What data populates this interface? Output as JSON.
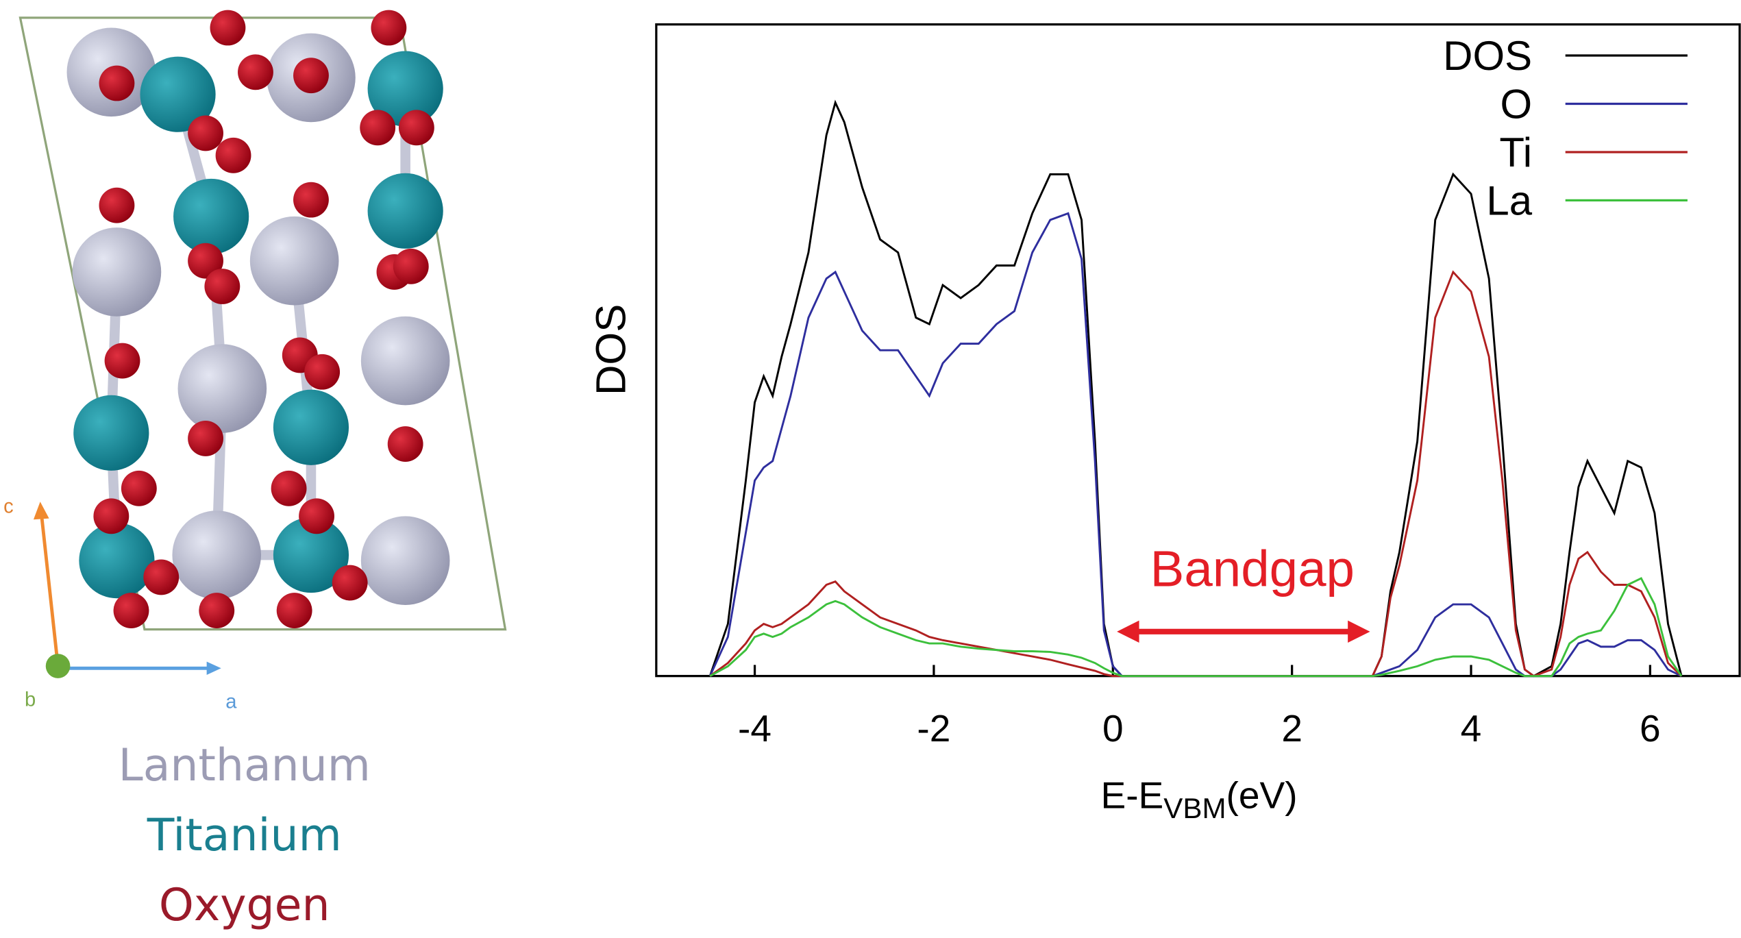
{
  "chart_data": {
    "type": "line",
    "ylabel": "DOS",
    "xlabel_parts": [
      "E-E",
      "VBM",
      "(eV)"
    ],
    "annotation": "Bandgap",
    "legend": "upper right",
    "xlim": [
      -5.1,
      7
    ],
    "xticks": [
      -4,
      -2,
      0,
      2,
      4,
      6
    ],
    "ylim": [
      0,
      1
    ],
    "x": [
      -4.5,
      -4.3,
      -4.1,
      -4.0,
      -3.9,
      -3.8,
      -3.7,
      -3.6,
      -3.4,
      -3.2,
      -3.1,
      -3.0,
      -2.8,
      -2.6,
      -2.4,
      -2.2,
      -2.05,
      -1.9,
      -1.7,
      -1.5,
      -1.3,
      -1.1,
      -0.9,
      -0.7,
      -0.5,
      -0.35,
      -0.2,
      -0.1,
      0,
      0.1,
      2.9,
      3.0,
      3.1,
      3.2,
      3.4,
      3.6,
      3.8,
      4.0,
      4.2,
      4.35,
      4.5,
      4.6,
      4.7,
      4.9,
      5.0,
      5.1,
      5.2,
      5.3,
      5.45,
      5.6,
      5.75,
      5.9,
      6.05,
      6.2,
      6.35
    ],
    "series": [
      {
        "name": "DOS",
        "color": "#000000",
        "values": [
          0,
          0.08,
          0.3,
          0.42,
          0.46,
          0.43,
          0.49,
          0.54,
          0.65,
          0.83,
          0.88,
          0.85,
          0.75,
          0.67,
          0.65,
          0.55,
          0.54,
          0.6,
          0.58,
          0.6,
          0.63,
          0.63,
          0.71,
          0.77,
          0.77,
          0.7,
          0.36,
          0.08,
          0.015,
          0,
          0,
          0.03,
          0.13,
          0.19,
          0.36,
          0.7,
          0.77,
          0.74,
          0.61,
          0.36,
          0.08,
          0.01,
          0,
          0.015,
          0.08,
          0.19,
          0.29,
          0.33,
          0.29,
          0.25,
          0.33,
          0.32,
          0.25,
          0.08,
          0
        ]
      },
      {
        "name": "O",
        "color": "#2e2e9e",
        "values": [
          0,
          0.06,
          0.22,
          0.3,
          0.32,
          0.33,
          0.38,
          0.43,
          0.55,
          0.61,
          0.62,
          0.59,
          0.53,
          0.5,
          0.5,
          0.46,
          0.43,
          0.48,
          0.51,
          0.51,
          0.54,
          0.56,
          0.65,
          0.7,
          0.71,
          0.64,
          0.33,
          0.07,
          0.015,
          0,
          0,
          0.005,
          0.01,
          0.015,
          0.04,
          0.09,
          0.11,
          0.11,
          0.09,
          0.05,
          0.01,
          0,
          0,
          0,
          0.01,
          0.03,
          0.05,
          0.055,
          0.045,
          0.045,
          0.055,
          0.055,
          0.04,
          0.01,
          0
        ]
      },
      {
        "name": "Ti",
        "color": "#b02020",
        "values": [
          0,
          0.02,
          0.05,
          0.07,
          0.08,
          0.075,
          0.08,
          0.09,
          0.11,
          0.14,
          0.145,
          0.13,
          0.11,
          0.09,
          0.08,
          0.07,
          0.06,
          0.055,
          0.05,
          0.045,
          0.04,
          0.035,
          0.03,
          0.025,
          0.018,
          0.013,
          0.008,
          0.003,
          0,
          0,
          0,
          0.03,
          0.12,
          0.17,
          0.3,
          0.55,
          0.62,
          0.59,
          0.49,
          0.3,
          0.07,
          0.01,
          0,
          0.01,
          0.06,
          0.14,
          0.18,
          0.19,
          0.16,
          0.14,
          0.14,
          0.13,
          0.09,
          0.02,
          0
        ]
      },
      {
        "name": "La",
        "color": "#3cc03c",
        "values": [
          0,
          0.015,
          0.04,
          0.06,
          0.065,
          0.06,
          0.065,
          0.075,
          0.09,
          0.11,
          0.115,
          0.11,
          0.09,
          0.075,
          0.065,
          0.055,
          0.05,
          0.05,
          0.045,
          0.042,
          0.04,
          0.038,
          0.038,
          0.037,
          0.033,
          0.028,
          0.02,
          0.012,
          0.005,
          0,
          0,
          0.002,
          0.005,
          0.008,
          0.015,
          0.025,
          0.03,
          0.03,
          0.025,
          0.015,
          0.005,
          0,
          0,
          0,
          0.02,
          0.05,
          0.06,
          0.065,
          0.07,
          0.1,
          0.14,
          0.15,
          0.11,
          0.03,
          0
        ]
      }
    ]
  },
  "structure": {
    "axes": [
      "c",
      "b",
      "a"
    ],
    "elements": [
      "Lanthanum",
      "Titanium",
      "Oxygen"
    ]
  }
}
